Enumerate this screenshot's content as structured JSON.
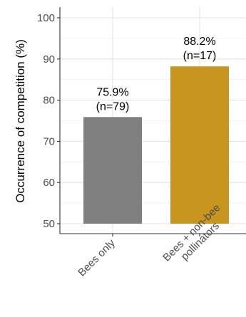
{
  "chart_data": {
    "type": "bar",
    "title": "",
    "xlabel": "",
    "ylabel": "Occurrence of competition (%)",
    "ylim": [
      50,
      100
    ],
    "yticks": [
      50,
      60,
      70,
      80,
      90,
      100
    ],
    "categories": [
      {
        "lines": [
          "Bees only"
        ]
      },
      {
        "lines": [
          "Bees + non-bee",
          "pollinators"
        ]
      }
    ],
    "values": [
      75.9,
      88.2
    ],
    "data_labels": [
      {
        "pct": "75.9%",
        "n": "(n=79)"
      },
      {
        "pct": "88.2%",
        "n": "(n=17)"
      }
    ],
    "colors": [
      "#808080",
      "#c8961f"
    ],
    "grid": true,
    "legend": "none"
  }
}
